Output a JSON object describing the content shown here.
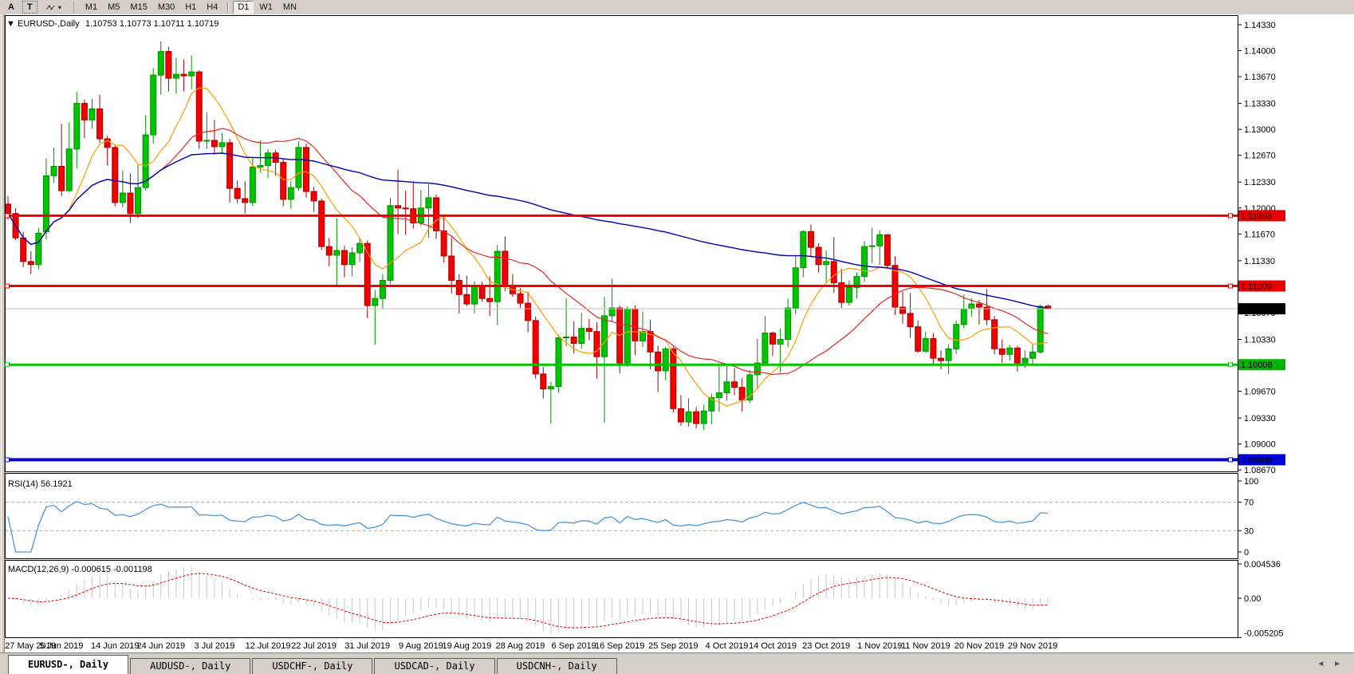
{
  "icons": {
    "chart_menu": "▼",
    "dropdown_caret": "▾",
    "cursor_tool": "↗↙",
    "tab_prev": "◄",
    "tab_next": "►"
  },
  "toolbar": {
    "tools": [
      {
        "label": "A"
      },
      {
        "label": "T"
      }
    ],
    "timeframes": [
      {
        "label": "M1",
        "active": false,
        "group": 1
      },
      {
        "label": "M5",
        "active": false,
        "group": 1
      },
      {
        "label": "M15",
        "active": false,
        "group": 1
      },
      {
        "label": "M30",
        "active": false,
        "group": 1
      },
      {
        "label": "H1",
        "active": false,
        "group": 1
      },
      {
        "label": "H4",
        "active": false,
        "group": 1
      },
      {
        "label": "D1",
        "active": true,
        "group": 2
      },
      {
        "label": "W1",
        "active": false,
        "group": 2
      },
      {
        "label": "MN",
        "active": false,
        "group": 2
      }
    ]
  },
  "chart": {
    "symbol_label": "EURUSD-,Daily",
    "ohlc_display": "1.10753 1.10773 1.10711 1.10719",
    "price_axis_ticks": [
      "1.14330",
      "1.14000",
      "1.13670",
      "1.13330",
      "1.13000",
      "1.12670",
      "1.12330",
      "1.12000",
      "1.11670",
      "1.11330",
      "1.10670",
      "1.10330",
      "1.09670",
      "1.09330",
      "1.09000",
      "1.08670"
    ],
    "hlines": [
      {
        "price": 1.11903,
        "color": "#f00000",
        "width": 3
      },
      {
        "price": 1.11009,
        "color": "#f00000",
        "width": 3
      },
      {
        "price": 1.10008,
        "color": "#00c400",
        "width": 3
      },
      {
        "price": 1.088,
        "color": "#0000dc",
        "width": 4
      }
    ],
    "current_price": 1.10719,
    "price_labels": [
      {
        "label": "1.11903",
        "price": 1.11903,
        "bg": "#e60000"
      },
      {
        "label": "1.11009",
        "price": 1.11009,
        "bg": "#e60000"
      },
      {
        "label": "1.10719",
        "price": 1.10719,
        "bg": "#000000"
      },
      {
        "label": "1.10008",
        "price": 1.10008,
        "bg": "#00b400"
      },
      {
        "label": "1.08800",
        "price": 1.088,
        "bg": "#0000dc"
      }
    ]
  },
  "chart_data": {
    "type": "candlestick",
    "symbol": "EURUSD-",
    "timeframe": "Daily",
    "last_bar": {
      "open": 1.10753,
      "high": 1.10773,
      "low": 1.10711,
      "close": 1.10719
    },
    "ylim": [
      1.0867,
      1.1433
    ],
    "moving_averages": [
      {
        "period": 8,
        "color": "#ff9c00"
      },
      {
        "period": 21,
        "color": "#e02828"
      },
      {
        "period": 100,
        "color": "#0000b0"
      }
    ],
    "indicators": [
      {
        "name": "RSI",
        "params": "14",
        "display_value": "56.1921",
        "levels": [
          70,
          30
        ],
        "range": [
          0,
          100
        ],
        "color": "#4896dc"
      },
      {
        "name": "MACD",
        "params": "12,26,9",
        "display_values": "-0.000615 -0.001198",
        "scale_max": 0.004536,
        "scale_min": -0.005205,
        "histogram_color": "#c8c8c8",
        "signal_color": "#e00000"
      }
    ],
    "date_ticks": [
      [
        "27 May 2019",
        0
      ],
      [
        "5 Jun 2019",
        7
      ],
      [
        "14 Jun 2019",
        14
      ],
      [
        "24 Jun 2019",
        20
      ],
      [
        "3 Jul 2019",
        27
      ],
      [
        "12 Jul 2019",
        34
      ],
      [
        "22 Jul 2019",
        40
      ],
      [
        "31 Jul 2019",
        47
      ],
      [
        "9 Aug 2019",
        54
      ],
      [
        "19 Aug 2019",
        60
      ],
      [
        "28 Aug 2019",
        67
      ],
      [
        "6 Sep 2019",
        74
      ],
      [
        "16 Sep 2019",
        80
      ],
      [
        "25 Sep 2019",
        87
      ],
      [
        "4 Oct 2019",
        94
      ],
      [
        "14 Oct 2019",
        100
      ],
      [
        "23 Oct 2019",
        107
      ],
      [
        "1 Nov 2019",
        114
      ],
      [
        "11 Nov 2019",
        120
      ],
      [
        "20 Nov 2019",
        127
      ],
      [
        "29 Nov 2019",
        134
      ]
    ],
    "candles": [
      [
        1.1205,
        1.1215,
        1.1185,
        1.1193
      ],
      [
        1.1193,
        1.12,
        1.1159,
        1.1162
      ],
      [
        1.1162,
        1.117,
        1.1125,
        1.1132
      ],
      [
        1.1132,
        1.1145,
        1.1116,
        1.1128
      ],
      [
        1.1128,
        1.1175,
        1.1122,
        1.1168
      ],
      [
        1.117,
        1.1263,
        1.116,
        1.1241
      ],
      [
        1.1241,
        1.1277,
        1.1232,
        1.1253
      ],
      [
        1.1253,
        1.1307,
        1.1215,
        1.1222
      ],
      [
        1.1222,
        1.1309,
        1.122,
        1.1275
      ],
      [
        1.1275,
        1.1348,
        1.125,
        1.1333
      ],
      [
        1.1333,
        1.1338,
        1.1289,
        1.1312
      ],
      [
        1.1312,
        1.1339,
        1.1301,
        1.1326
      ],
      [
        1.1326,
        1.1344,
        1.1283,
        1.1288
      ],
      [
        1.1288,
        1.1292,
        1.1254,
        1.1277
      ],
      [
        1.1277,
        1.128,
        1.1202,
        1.1207
      ],
      [
        1.1207,
        1.1248,
        1.1201,
        1.1219
      ],
      [
        1.1219,
        1.1244,
        1.1181,
        1.1193
      ],
      [
        1.1193,
        1.1255,
        1.1187,
        1.1226
      ],
      [
        1.1226,
        1.1318,
        1.1222,
        1.1293
      ],
      [
        1.1293,
        1.1378,
        1.1282,
        1.1369
      ],
      [
        1.1369,
        1.1412,
        1.1344,
        1.1399
      ],
      [
        1.1399,
        1.1405,
        1.1348,
        1.1365
      ],
      [
        1.1365,
        1.1391,
        1.1345,
        1.137
      ],
      [
        1.137,
        1.1389,
        1.1348,
        1.1368
      ],
      [
        1.1368,
        1.1394,
        1.1351,
        1.1373
      ],
      [
        1.1373,
        1.1375,
        1.1275,
        1.1285
      ],
      [
        1.1285,
        1.1322,
        1.1275,
        1.1286
      ],
      [
        1.1286,
        1.1312,
        1.1268,
        1.1278
      ],
      [
        1.1278,
        1.1295,
        1.127,
        1.1283
      ],
      [
        1.1283,
        1.1288,
        1.1207,
        1.1225
      ],
      [
        1.1225,
        1.1235,
        1.1206,
        1.1212
      ],
      [
        1.1212,
        1.1234,
        1.1193,
        1.1207
      ],
      [
        1.1207,
        1.1264,
        1.1202,
        1.1252
      ],
      [
        1.1252,
        1.1286,
        1.1245,
        1.1254
      ],
      [
        1.1254,
        1.1275,
        1.1238,
        1.127
      ],
      [
        1.127,
        1.1274,
        1.1241,
        1.1258
      ],
      [
        1.1258,
        1.1262,
        1.1202,
        1.1211
      ],
      [
        1.1211,
        1.1234,
        1.1199,
        1.1226
      ],
      [
        1.1226,
        1.1285,
        1.1222,
        1.1277
      ],
      [
        1.1277,
        1.1282,
        1.1213,
        1.1221
      ],
      [
        1.1221,
        1.1227,
        1.1195,
        1.1209
      ],
      [
        1.1209,
        1.1212,
        1.1147,
        1.1151
      ],
      [
        1.1151,
        1.1162,
        1.1126,
        1.114
      ],
      [
        1.114,
        1.1187,
        1.1101,
        1.1146
      ],
      [
        1.1146,
        1.1152,
        1.1112,
        1.1128
      ],
      [
        1.1128,
        1.115,
        1.1113,
        1.1143
      ],
      [
        1.1143,
        1.1162,
        1.1131,
        1.1155
      ],
      [
        1.1155,
        1.1159,
        1.106,
        1.1076
      ],
      [
        1.1076,
        1.1096,
        1.1026,
        1.1085
      ],
      [
        1.1085,
        1.1116,
        1.1072,
        1.1108
      ],
      [
        1.1108,
        1.1213,
        1.1103,
        1.1203
      ],
      [
        1.1203,
        1.1249,
        1.1167,
        1.12
      ],
      [
        1.12,
        1.1222,
        1.1166,
        1.1199
      ],
      [
        1.1199,
        1.1234,
        1.1174,
        1.1181
      ],
      [
        1.1181,
        1.1223,
        1.1177,
        1.12
      ],
      [
        1.12,
        1.123,
        1.1162,
        1.1213
      ],
      [
        1.1213,
        1.1217,
        1.1161,
        1.1171
      ],
      [
        1.1171,
        1.1192,
        1.1131,
        1.1139
      ],
      [
        1.1139,
        1.1163,
        1.1091,
        1.1108
      ],
      [
        1.1108,
        1.1116,
        1.1066,
        1.109
      ],
      [
        1.109,
        1.1114,
        1.1075,
        1.1078
      ],
      [
        1.1078,
        1.1107,
        1.1066,
        1.11
      ],
      [
        1.11,
        1.1106,
        1.1081,
        1.1085
      ],
      [
        1.1085,
        1.1113,
        1.1063,
        1.1081
      ],
      [
        1.1081,
        1.1153,
        1.1051,
        1.1145
      ],
      [
        1.1145,
        1.1164,
        1.1094,
        1.1101
      ],
      [
        1.1101,
        1.1116,
        1.1087,
        1.1091
      ],
      [
        1.1091,
        1.1098,
        1.1073,
        1.1079
      ],
      [
        1.1079,
        1.1094,
        1.1042,
        1.1057
      ],
      [
        1.1057,
        1.1062,
        1.0983,
        1.0989
      ],
      [
        1.0989,
        1.0998,
        1.0958,
        1.097
      ],
      [
        1.097,
        1.0979,
        1.0926,
        1.0973
      ],
      [
        1.0973,
        1.1039,
        1.0965,
        1.1035
      ],
      [
        1.1035,
        1.1085,
        1.1024,
        1.1036
      ],
      [
        1.1036,
        1.1056,
        1.1015,
        1.1028
      ],
      [
        1.1028,
        1.1067,
        1.1021,
        1.1047
      ],
      [
        1.1047,
        1.1059,
        1.1032,
        1.1043
      ],
      [
        1.1043,
        1.1055,
        1.0983,
        1.1011
      ],
      [
        1.1011,
        1.1087,
        1.0927,
        1.1063
      ],
      [
        1.1063,
        1.111,
        1.1055,
        1.1073
      ],
      [
        1.1073,
        1.1076,
        1.099,
        1.1003
      ],
      [
        1.1003,
        1.1075,
        1.0998,
        1.1072
      ],
      [
        1.1072,
        1.1076,
        1.1013,
        1.1031
      ],
      [
        1.1031,
        1.1068,
        1.1023,
        1.1043
      ],
      [
        1.1043,
        1.1058,
        1.0995,
        1.1017
      ],
      [
        1.1017,
        1.1025,
        1.0966,
        1.0993
      ],
      [
        1.0993,
        1.1024,
        1.0981,
        1.1021
      ],
      [
        1.1021,
        1.1024,
        1.094,
        1.0945
      ],
      [
        1.0945,
        1.0962,
        1.0923,
        1.0928
      ],
      [
        1.0928,
        1.0958,
        1.0922,
        1.0941
      ],
      [
        1.0941,
        1.0947,
        1.092,
        1.0926
      ],
      [
        1.0926,
        1.095,
        1.0918,
        1.0942
      ],
      [
        1.0942,
        1.0964,
        1.0925,
        1.0959
      ],
      [
        1.0959,
        1.0999,
        1.0941,
        1.0965
      ],
      [
        1.0965,
        1.0999,
        1.0955,
        1.0979
      ],
      [
        1.0979,
        1.0996,
        1.0962,
        1.0972
      ],
      [
        1.0972,
        1.0984,
        1.0941,
        1.0956
      ],
      [
        1.0956,
        1.0994,
        1.0952,
        1.0988
      ],
      [
        1.0988,
        1.1034,
        1.0971,
        1.1003
      ],
      [
        1.1003,
        1.1063,
        1.1002,
        1.1041
      ],
      [
        1.1041,
        1.1043,
        1.1012,
        1.1027
      ],
      [
        1.1027,
        1.1047,
        1.0991,
        1.1033
      ],
      [
        1.1033,
        1.1085,
        1.1023,
        1.1073
      ],
      [
        1.1073,
        1.114,
        1.1065,
        1.1124
      ],
      [
        1.1124,
        1.1172,
        1.1112,
        1.117
      ],
      [
        1.117,
        1.1179,
        1.1138,
        1.115
      ],
      [
        1.115,
        1.1155,
        1.1118,
        1.1128
      ],
      [
        1.1128,
        1.1146,
        1.1106,
        1.1132
      ],
      [
        1.1132,
        1.1163,
        1.1092,
        1.1105
      ],
      [
        1.1105,
        1.1123,
        1.1073,
        1.108
      ],
      [
        1.108,
        1.1108,
        1.1076,
        1.1099
      ],
      [
        1.1099,
        1.1118,
        1.1085,
        1.1113
      ],
      [
        1.1113,
        1.1158,
        1.1106,
        1.1151
      ],
      [
        1.1151,
        1.1175,
        1.113,
        1.1152
      ],
      [
        1.1152,
        1.1172,
        1.1128,
        1.1166
      ],
      [
        1.1166,
        1.1167,
        1.1123,
        1.1127
      ],
      [
        1.1127,
        1.1139,
        1.1064,
        1.1074
      ],
      [
        1.1074,
        1.1094,
        1.1053,
        1.1066
      ],
      [
        1.1066,
        1.1092,
        1.1035,
        1.1049
      ],
      [
        1.1049,
        1.1057,
        1.1016,
        1.1018
      ],
      [
        1.1018,
        1.1043,
        1.1016,
        1.1034
      ],
      [
        1.1034,
        1.1041,
        1.1002,
        1.1009
      ],
      [
        1.1009,
        1.1019,
        1.0995,
        1.1006
      ],
      [
        1.1006,
        1.1027,
        1.0989,
        1.1021
      ],
      [
        1.1021,
        1.1057,
        1.1014,
        1.1052
      ],
      [
        1.1052,
        1.109,
        1.1047,
        1.1072
      ],
      [
        1.1072,
        1.1085,
        1.1062,
        1.1078
      ],
      [
        1.1078,
        1.1083,
        1.1052,
        1.1074
      ],
      [
        1.1074,
        1.1097,
        1.1051,
        1.1058
      ],
      [
        1.1058,
        1.1063,
        1.1014,
        1.1021
      ],
      [
        1.1021,
        1.1033,
        1.1003,
        1.1014
      ],
      [
        1.1014,
        1.1026,
        1.1006,
        1.1022
      ],
      [
        1.1022,
        1.1025,
        1.0992,
        1.1003
      ],
      [
        1.1003,
        1.1019,
        1.0997,
        1.1009
      ],
      [
        1.1009,
        1.1028,
        1.1002,
        1.1017
      ],
      [
        1.1017,
        1.1077,
        1.1015,
        1.1075
      ],
      [
        1.10753,
        1.10773,
        1.10711,
        1.10719
      ]
    ]
  },
  "rsi_panel": {
    "display": "RSI(14) 56.1921",
    "axis": [
      "100",
      "70",
      "30",
      "0"
    ]
  },
  "macd_panel": {
    "display": "MACD(12,26,9) -0.000615 -0.001198",
    "axis": [
      "0.004536",
      "0.00",
      "-0.005205"
    ]
  },
  "tabs": [
    {
      "label": "EURUSD-, Daily",
      "active": true
    },
    {
      "label": "AUDUSD-, Daily",
      "active": false
    },
    {
      "label": "USDCHF-, Daily",
      "active": false
    },
    {
      "label": "USDCAD-, Daily",
      "active": false
    },
    {
      "label": "USDCNH-, Daily",
      "active": false
    }
  ],
  "colors": {
    "candle_up": "#00c400",
    "candle_up_border": "#009000",
    "candle_down": "#f40000",
    "candle_down_border": "#a80000",
    "ma_fast": "#ff9c00",
    "ma_mid": "#e02828",
    "ma_slow": "#0000b0",
    "rsi_line": "#4896dc",
    "level_dash": "#a8a8a8",
    "macd_hist": "#c8c8c8",
    "macd_signal": "#e00000",
    "current_price_line": "#c0c0c0",
    "panel_border": "#000000",
    "window_bg": "#d4d0c8"
  }
}
